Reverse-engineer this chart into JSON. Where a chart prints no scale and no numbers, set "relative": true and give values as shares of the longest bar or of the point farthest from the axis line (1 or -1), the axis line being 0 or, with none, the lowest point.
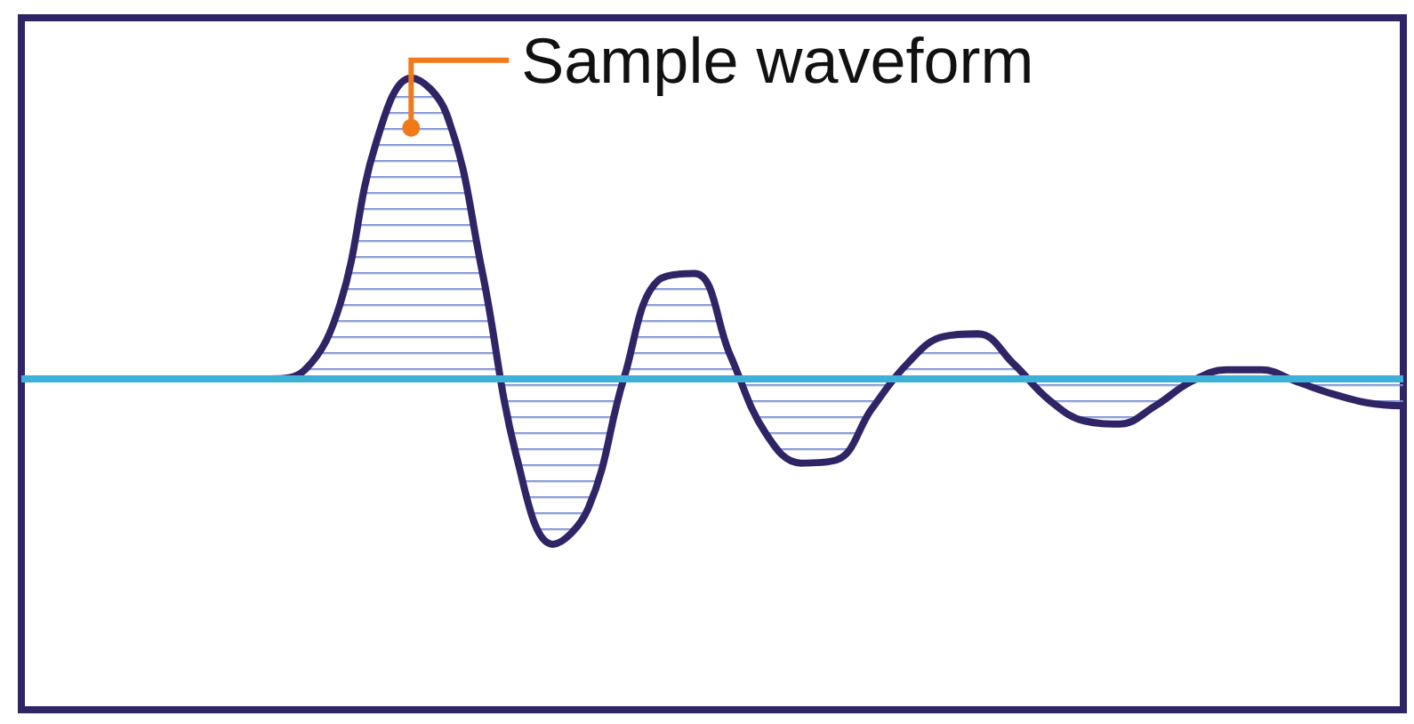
{
  "chart_data": {
    "type": "area",
    "relative": true,
    "marker": "none",
    "line_style": "solid",
    "categories": [
      null,
      null,
      null,
      null,
      null,
      null,
      null,
      null,
      null,
      null,
      null,
      null,
      null,
      null,
      null,
      null,
      null,
      null,
      null,
      null,
      null,
      null,
      null,
      null,
      null,
      null,
      null,
      null,
      null,
      null,
      null,
      null,
      null,
      null,
      null,
      null,
      null,
      null,
      null,
      null
    ],
    "series": [
      {
        "color": "#2e2466",
        "values": [
          0,
          0,
          0,
          0,
          0,
          0,
          0,
          0,
          0.03,
          0.25,
          0.78,
          1.0,
          0.88,
          0.36,
          -0.27,
          -0.55,
          -0.43,
          0.0,
          0.33,
          0.35,
          0.08,
          -0.18,
          -0.28,
          -0.27,
          -0.1,
          0.05,
          0.14,
          0.15,
          0.05,
          -0.07,
          -0.14,
          -0.15,
          -0.09,
          -0.01,
          0.03,
          0.03,
          -0.01,
          -0.05,
          -0.08,
          -0.09
        ]
      }
    ],
    "ref_lines": [
      {
        "axis": "y",
        "value": 0,
        "color": "#3fb0d8"
      }
    ],
    "annotations": [
      "Sample waveform"
    ]
  }
}
